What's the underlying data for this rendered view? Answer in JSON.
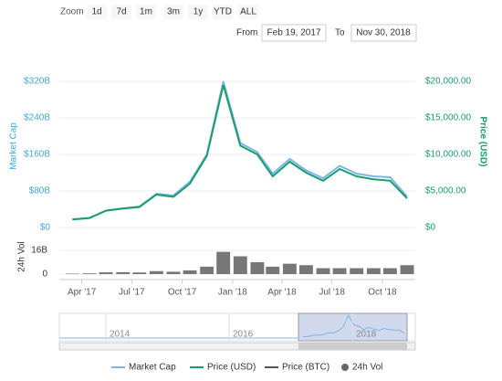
{
  "toolbar": {
    "zoom_label": "Zoom",
    "buttons": [
      "1d",
      "7d",
      "1m",
      "3m",
      "1y",
      "YTD",
      "ALL"
    ],
    "from_label": "From",
    "from": "Feb 19, 2017",
    "to_label": "To",
    "to": "Nov 30, 2018"
  },
  "chart_data": {
    "type": "line",
    "x": [
      "2017-03",
      "2017-04",
      "2017-05",
      "2017-06",
      "2017-07",
      "2017-08",
      "2017-09",
      "2017-10",
      "2017-11",
      "2017-12",
      "2018-01",
      "2018-02",
      "2018-03",
      "2018-04",
      "2018-05",
      "2018-06",
      "2018-07",
      "2018-08",
      "2018-09",
      "2018-10",
      "2018-11"
    ],
    "xlim": [
      "2017-02-19",
      "2018-11-30"
    ],
    "xticks": [
      {
        "value": "2017-04",
        "label": "Apr '17"
      },
      {
        "value": "2017-07",
        "label": "Jul '17"
      },
      {
        "value": "2017-10",
        "label": "Oct '17"
      },
      {
        "value": "2018-01",
        "label": "Jan '18"
      },
      {
        "value": "2018-04",
        "label": "Apr '18"
      },
      {
        "value": "2018-07",
        "label": "Jul '18"
      },
      {
        "value": "2018-10",
        "label": "Oct '18"
      }
    ],
    "ylabel": "Market Cap",
    "ylim": [
      0,
      320
    ],
    "yticks": [
      {
        "value": 0,
        "label": "$0"
      },
      {
        "value": 80,
        "label": "$80B"
      },
      {
        "value": 160,
        "label": "$160B"
      },
      {
        "value": 240,
        "label": "$240B"
      },
      {
        "value": 320,
        "label": "$320B"
      }
    ],
    "y2label": "Price (USD)",
    "y2lim": [
      0,
      20000
    ],
    "y2ticks": [
      {
        "value": 0,
        "label": "$0"
      },
      {
        "value": 5000,
        "label": "$5,000.00"
      },
      {
        "value": 10000,
        "label": "$10,000.00"
      },
      {
        "value": 15000,
        "label": "$15,000.00"
      },
      {
        "value": 20000,
        "label": "$20,000.00"
      }
    ],
    "y3label": "24h Vol",
    "y3lim": [
      0,
      20
    ],
    "y3ticks": [
      0,
      {
        "value": 16,
        "label": "16B"
      }
    ],
    "grid": true,
    "series": [
      {
        "name": "Market Cap",
        "color": "#7cb5ec",
        "values": [
          18,
          21,
          37,
          42,
          46,
          74,
          70,
          100,
          160,
          320,
          185,
          165,
          118,
          150,
          125,
          108,
          135,
          118,
          112,
          110,
          68
        ]
      },
      {
        "name": "Price (USD)",
        "color": "#1a9e6e",
        "axis": "y2",
        "values": [
          1100,
          1300,
          2300,
          2600,
          2800,
          4500,
          4200,
          6000,
          9800,
          19500,
          11200,
          10000,
          7000,
          9000,
          7500,
          6400,
          8000,
          7000,
          6600,
          6400,
          4000
        ]
      },
      {
        "name": "Price (BTC)",
        "color": "#555555",
        "visible": false
      },
      {
        "name": "24h Vol",
        "color": "#777777",
        "type": "bar",
        "axis": "y3",
        "values": [
          0.3,
          0.5,
          1.2,
          1.3,
          1.1,
          2,
          1.6,
          2.5,
          5,
          15,
          12,
          8,
          5,
          7,
          6,
          4,
          4,
          4,
          4,
          4,
          6
        ]
      }
    ],
    "navigator": {
      "labels": [
        "2014",
        "2016",
        "2018"
      ]
    }
  }
}
